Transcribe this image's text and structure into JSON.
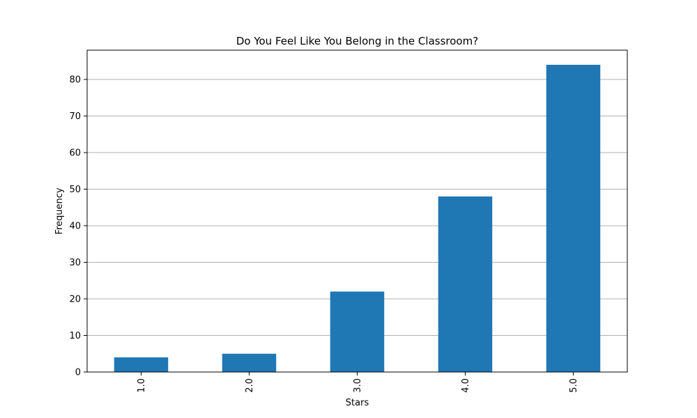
{
  "chart_data": {
    "type": "bar",
    "title": "Do You Feel Like You Belong in the Classroom?",
    "xlabel": "Stars",
    "ylabel": "Frequency",
    "categories": [
      "1.0",
      "2.0",
      "3.0",
      "4.0",
      "5.0"
    ],
    "values": [
      4,
      5,
      22,
      48,
      84
    ],
    "ylim": [
      0,
      88
    ],
    "yticks": [
      0,
      10,
      20,
      30,
      40,
      50,
      60,
      70,
      80
    ],
    "grid": "horizontal",
    "x_tick_rotation": "vertical",
    "bar_color": "#1f77b4",
    "grid_color": "#b0b0b0"
  }
}
